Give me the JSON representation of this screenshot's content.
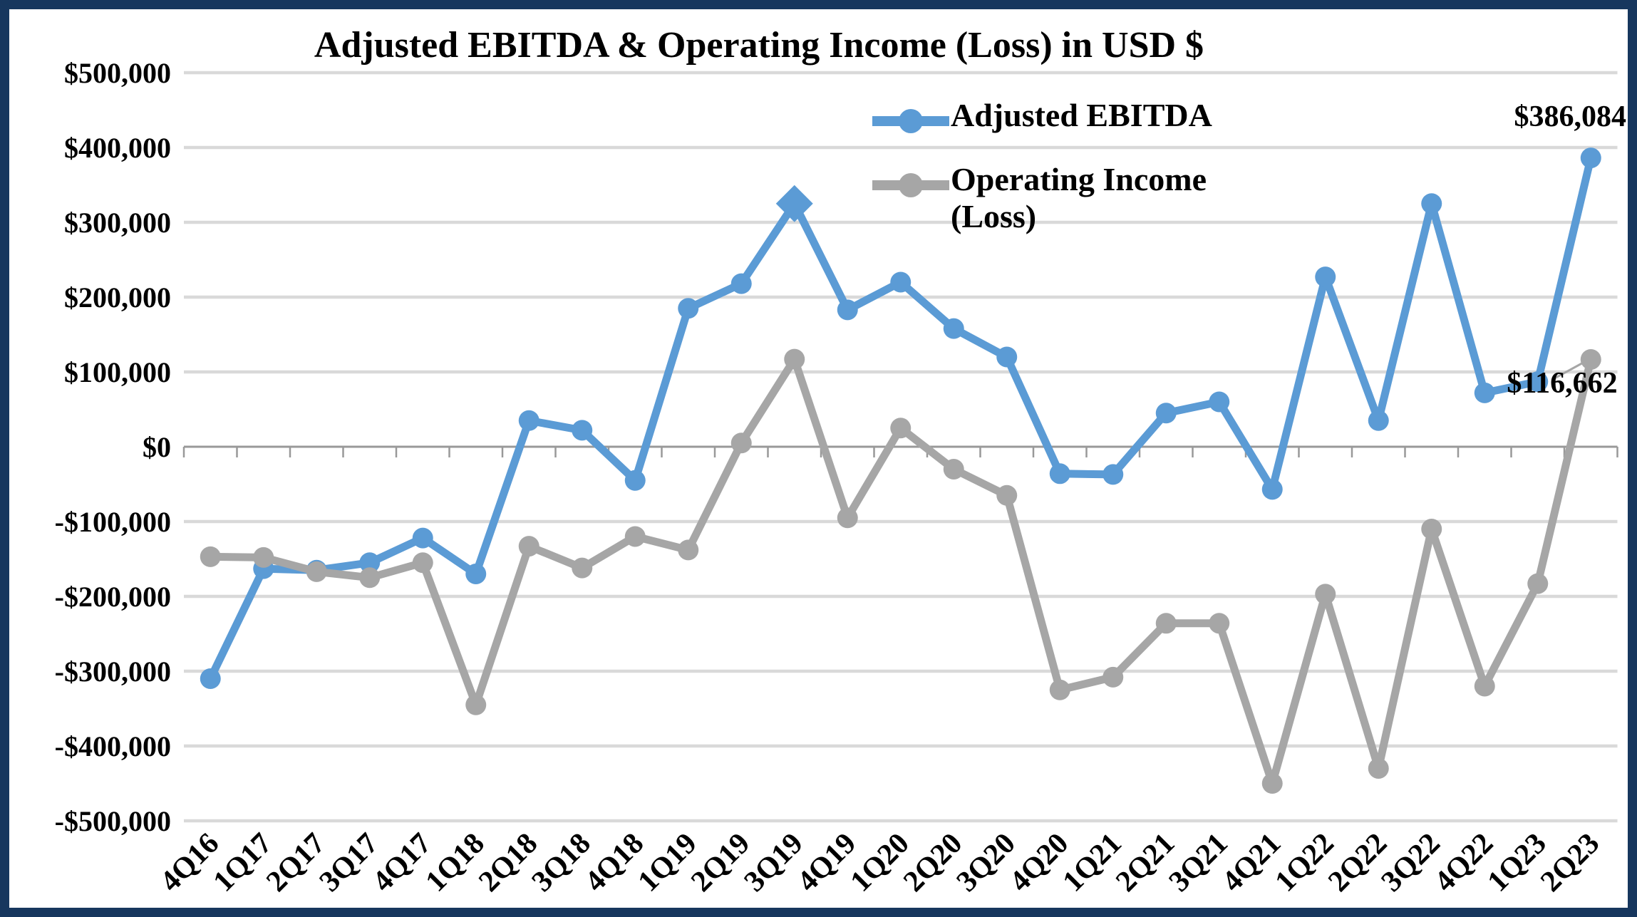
{
  "chart_data": {
    "type": "line",
    "title": "Adjusted EBITDA & Operating Income (Loss) in USD $",
    "categories": [
      "4Q16",
      "1Q17",
      "2Q17",
      "3Q17",
      "4Q17",
      "1Q18",
      "2Q18",
      "3Q18",
      "4Q18",
      "1Q19",
      "2Q19",
      "3Q19",
      "4Q19",
      "1Q20",
      "2Q20",
      "3Q20",
      "4Q20",
      "1Q21",
      "2Q21",
      "3Q21",
      "4Q21",
      "1Q22",
      "2Q22",
      "3Q22",
      "4Q22",
      "1Q23",
      "2Q23"
    ],
    "series": [
      {
        "name": "Adjusted EBITDA",
        "color": "#5B9BD5",
        "marker": "circle",
        "highlight_index": 11,
        "highlight_marker": "diamond",
        "values": [
          -310000,
          -163000,
          -165000,
          -155000,
          -122000,
          -170000,
          35000,
          22000,
          -45000,
          185000,
          218000,
          325000,
          183000,
          220000,
          158000,
          120000,
          -36000,
          -37000,
          45000,
          60000,
          -57000,
          227000,
          35000,
          325000,
          72000,
          87000,
          386084
        ]
      },
      {
        "name": "Operating Income (Loss)",
        "color": "#A6A6A6",
        "marker": "circle",
        "values": [
          -147000,
          -148000,
          -167000,
          -175000,
          -155000,
          -345000,
          -133000,
          -162000,
          -120000,
          -138000,
          5000,
          117000,
          -95000,
          25000,
          -30000,
          -65000,
          -325000,
          -308000,
          -236000,
          -236000,
          -450000,
          -197000,
          -430000,
          -110000,
          -320000,
          -183000,
          116662
        ]
      }
    ],
    "y_axis": {
      "min": -500000,
      "max": 500000,
      "step": 100000,
      "tick_labels": [
        "$500,000",
        "$400,000",
        "$300,000",
        "$200,000",
        "$100,000",
        "$0",
        "-$100,000",
        "-$200,000",
        "-$300,000",
        "-$400,000",
        "-$500,000"
      ]
    },
    "x_axis": {
      "label_rotation_deg": -45
    },
    "grid": true,
    "legend_position": "top-right",
    "legend": {
      "items": [
        {
          "label": "Adjusted EBITDA"
        },
        {
          "label": "Operating Income (Loss)"
        }
      ]
    },
    "annotations": [
      {
        "text": "$386,084",
        "series": 0,
        "point_index": 26,
        "position": "above-right"
      },
      {
        "text": "$116,662",
        "series": 1,
        "point_index": 26,
        "position": "below-left",
        "leader": true
      }
    ],
    "colors": {
      "gridline": "#D9D9D9",
      "zero_axis": "#999999",
      "border": "#17375E",
      "background": "#FFFFFF",
      "leader_line": "#A6A6A6"
    }
  }
}
